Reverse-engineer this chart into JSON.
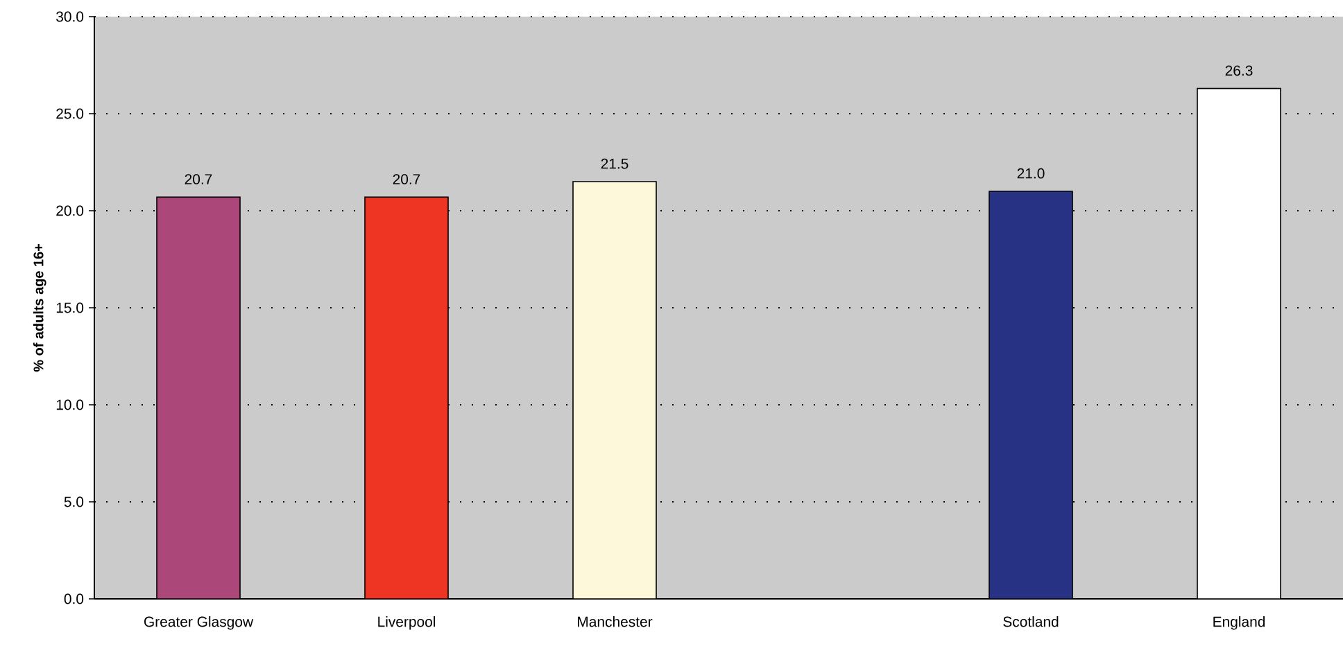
{
  "chart_data": {
    "type": "bar",
    "ylabel": "% of adults age 16+",
    "categories": [
      "Greater Glasgow",
      "Liverpool",
      "Manchester",
      null,
      "Scotland",
      "England"
    ],
    "values": [
      20.7,
      20.7,
      21.5,
      null,
      21.0,
      26.3
    ],
    "colors": [
      "#ac4879",
      "#ee3524",
      "#fdf8da",
      null,
      "#283284",
      "#ffffff"
    ],
    "value_labels": [
      "20.7",
      "20.7",
      "21.5",
      null,
      "21.0",
      "26.3"
    ],
    "ylim": [
      0,
      30
    ],
    "yticks": [
      {
        "value": 0,
        "label": "0.0"
      },
      {
        "value": 5,
        "label": "5.0"
      },
      {
        "value": 10,
        "label": "10.0"
      },
      {
        "value": 15,
        "label": "15.0"
      },
      {
        "value": 20,
        "label": "20.0"
      },
      {
        "value": 25,
        "label": "25.0"
      },
      {
        "value": 30,
        "label": "30.0"
      }
    ],
    "grid": "y"
  }
}
